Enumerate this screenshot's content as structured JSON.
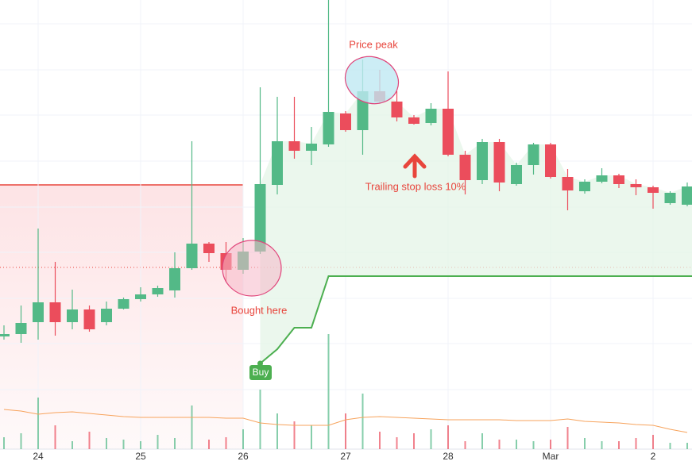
{
  "chart_data": {
    "type": "candlestick",
    "categories": [
      null,
      null,
      "24",
      null,
      null,
      null,
      null,
      null,
      "25",
      null,
      null,
      null,
      null,
      null,
      "26",
      null,
      null,
      null,
      null,
      null,
      "27",
      null,
      null,
      null,
      null,
      null,
      "28",
      null,
      null,
      null,
      null,
      null,
      "Mar",
      null,
      null,
      null,
      null,
      null,
      "2",
      null,
      null
    ],
    "open": [
      142,
      145,
      160,
      185,
      160,
      176,
      160,
      177,
      189,
      195,
      200,
      228,
      259,
      247,
      226,
      249,
      333,
      388,
      376,
      384,
      423,
      402,
      451,
      438,
      418,
      411,
      429,
      371,
      339,
      387,
      334,
      358,
      384,
      343,
      325,
      337,
      345,
      334,
      330,
      310,
      308
    ],
    "high": [
      156,
      181,
      278,
      236,
      201,
      181,
      186,
      191,
      204,
      206,
      248,
      388,
      261,
      261,
      266,
      456,
      444,
      444,
      406,
      566,
      426,
      491,
      478,
      451,
      421,
      436,
      476,
      376,
      391,
      391,
      361,
      386,
      386,
      353,
      340,
      354,
      347,
      340,
      332,
      325,
      336
    ],
    "low": [
      138,
      134,
      138,
      143,
      151,
      148,
      156,
      176,
      186,
      192,
      191,
      226,
      236,
      211,
      221,
      246,
      321,
      366,
      358,
      381,
      400,
      371,
      436,
      413,
      409,
      408,
      369,
      321,
      334,
      325,
      332,
      346,
      341,
      301,
      322,
      335,
      329,
      320,
      303,
      308,
      306
    ],
    "close": [
      145,
      159,
      185,
      160,
      176,
      151,
      177,
      189,
      195,
      203,
      228,
      259,
      247,
      226,
      249,
      334,
      388,
      376,
      385,
      425,
      402,
      451,
      438,
      418,
      410,
      429,
      371,
      339,
      387,
      336,
      358,
      384,
      343,
      326,
      337,
      345,
      334,
      330,
      323,
      323,
      331
    ],
    "volume": [
      15,
      20,
      65,
      30,
      10,
      22,
      14,
      12,
      10,
      18,
      14,
      55,
      12,
      15,
      25,
      75,
      45,
      35,
      30,
      145,
      45,
      70,
      22,
      15,
      20,
      25,
      30,
      10,
      20,
      12,
      12,
      10,
      12,
      28,
      14,
      10,
      10,
      14,
      18,
      8,
      8
    ],
    "volume_ma": [
      50,
      48,
      44,
      46,
      47,
      45,
      43,
      41,
      40,
      40,
      40,
      40,
      40,
      39,
      39,
      33,
      31,
      30,
      30,
      30,
      37,
      40,
      41,
      40,
      39,
      38,
      37,
      37,
      37,
      37,
      36,
      36,
      36,
      38,
      35,
      34,
      33,
      31,
      30,
      25,
      21
    ],
    "trailing_stop": [
      null,
      null,
      null,
      null,
      null,
      null,
      null,
      null,
      null,
      null,
      null,
      null,
      null,
      null,
      null,
      108,
      126,
      153,
      153,
      218,
      218,
      218,
      218,
      218,
      218,
      218,
      218,
      218,
      218,
      218,
      218,
      218,
      218,
      218,
      218,
      218,
      218,
      218,
      218,
      218,
      218
    ],
    "entry_price": 229,
    "range_top": 333,
    "ylim": [
      0,
      566
    ],
    "vlim": [
      0,
      566
    ],
    "ygrid": [
      75,
      133,
      190,
      248,
      305,
      363,
      421,
      478,
      536
    ],
    "up_color": "#53b987",
    "down_color": "#eb4d5c",
    "stop_color": "#4caf50",
    "volume_ma_color": "#f7a35c",
    "annotations": {
      "peak": "Price peak",
      "bought": "Bought here",
      "trailing": "Trailing stop loss 10%",
      "buy": "Buy"
    }
  }
}
